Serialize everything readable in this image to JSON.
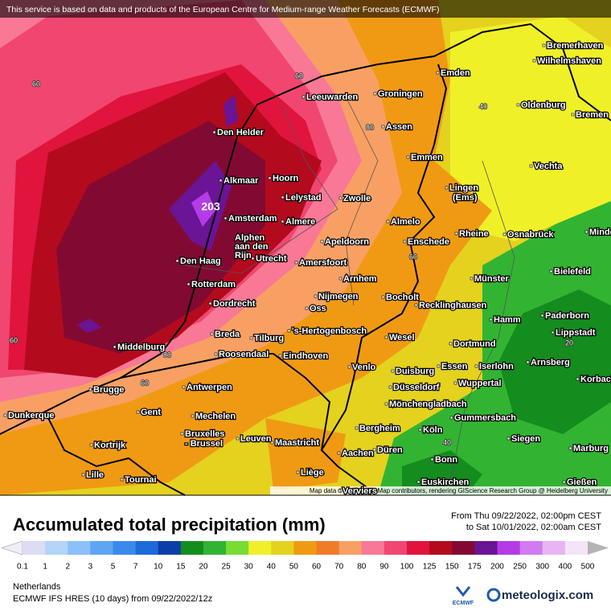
{
  "header": "This service is based on data and products of the European Centre for Medium-range Weather Forecasts (ECMWF)",
  "attribution": "Map data © OpenStreetMap contributors, rendering GIScience Research Group @ Heidelberg University",
  "title": "Accumulated total precipitation (mm)",
  "period": [
    "From Thu 09/22/2022, 02:00pm CEST",
    "to Sat 10/01/2022, 02:00am CEST"
  ],
  "legend": {
    "values": [
      0.1,
      1,
      2,
      3,
      5,
      7,
      10,
      15,
      20,
      25,
      30,
      40,
      50,
      60,
      70,
      80,
      90,
      100,
      125,
      150,
      175,
      200,
      250,
      300,
      400,
      500
    ],
    "colors": [
      "#eeeef8",
      "#dcdcf4",
      "#b4d4f8",
      "#8cc0f8",
      "#5ea6f4",
      "#3a8aee",
      "#1e6ad8",
      "#0c3ea8",
      "#148c1e",
      "#32b432",
      "#78dc32",
      "#f0f028",
      "#e4d21e",
      "#f09a14",
      "#f07c28",
      "#f8a064",
      "#f87896",
      "#f04670",
      "#e0143c",
      "#b40a1e",
      "#820a32",
      "#6a1496",
      "#b43ce6",
      "#d27af0",
      "#e8b4f4",
      "#f4e4f8",
      "#b4b4b4"
    ]
  },
  "footer": {
    "region": "Netherlands",
    "model": "ECMWF IFS HRES (10 days) from 09/22/2022/12z",
    "ecmwf": "ECMWF",
    "brand": "meteologix.com"
  },
  "map": {
    "max_label": "203",
    "contour_labels": [
      "60",
      "60",
      "40",
      "80",
      "60",
      "80",
      "60",
      "40",
      "60",
      "20"
    ],
    "cities": [
      "Bremerhaven",
      "Wilhelmshaven",
      "Emden",
      "Leeuwarden",
      "Groningen",
      "Oldenburg",
      "Bremen",
      "Den Helder",
      "Assen",
      "Emmen",
      "Vechta",
      "Alkmaar",
      "Hoorn",
      "Lingen",
      "(Ems)",
      "Lelystad",
      "Zwolle",
      "Amsterdam",
      "Almere",
      "Almelo",
      "Minden",
      "Rheine",
      "Osnabrück",
      "Apeldoorn",
      "Enschede",
      "Alphen",
      "aan den",
      "Rijn",
      "Den Haag",
      "Utrecht",
      "Amersfoort",
      "Bielefeld",
      "Arnhem",
      "Münster",
      "Rotterdam",
      "Nijmegen",
      "Bocholt",
      "Dordrecht",
      "Oss",
      "Recklinghausen",
      "Hamm",
      "Paderborn",
      "Breda",
      "Tilburg",
      "'s-Hertogenbosch",
      "Wesel",
      "Lippstadt",
      "Middelburg",
      "Roosendaal",
      "Eindhoven",
      "Dortmund",
      "Brugge",
      "Antwerpen",
      "Venlo",
      "Duisburg",
      "Essen",
      "Iserlohn",
      "Arnsberg",
      "Korbach",
      "Düsseldorf",
      "Wuppertal",
      "Mönchengladbach",
      "Dunkerque",
      "Gent",
      "Mechelen",
      "Gummersbach",
      "Bruxelles",
      "- Brussel",
      "Leuven",
      "Maastricht",
      "Bergheim",
      "Köln",
      "Kortrijk",
      "Siegen",
      "Düren",
      "Aachen",
      "Marburg",
      "Bonn",
      "Lille",
      "Tournai",
      "Liège",
      "Verviers",
      "Euskirchen",
      "Gießen"
    ]
  }
}
